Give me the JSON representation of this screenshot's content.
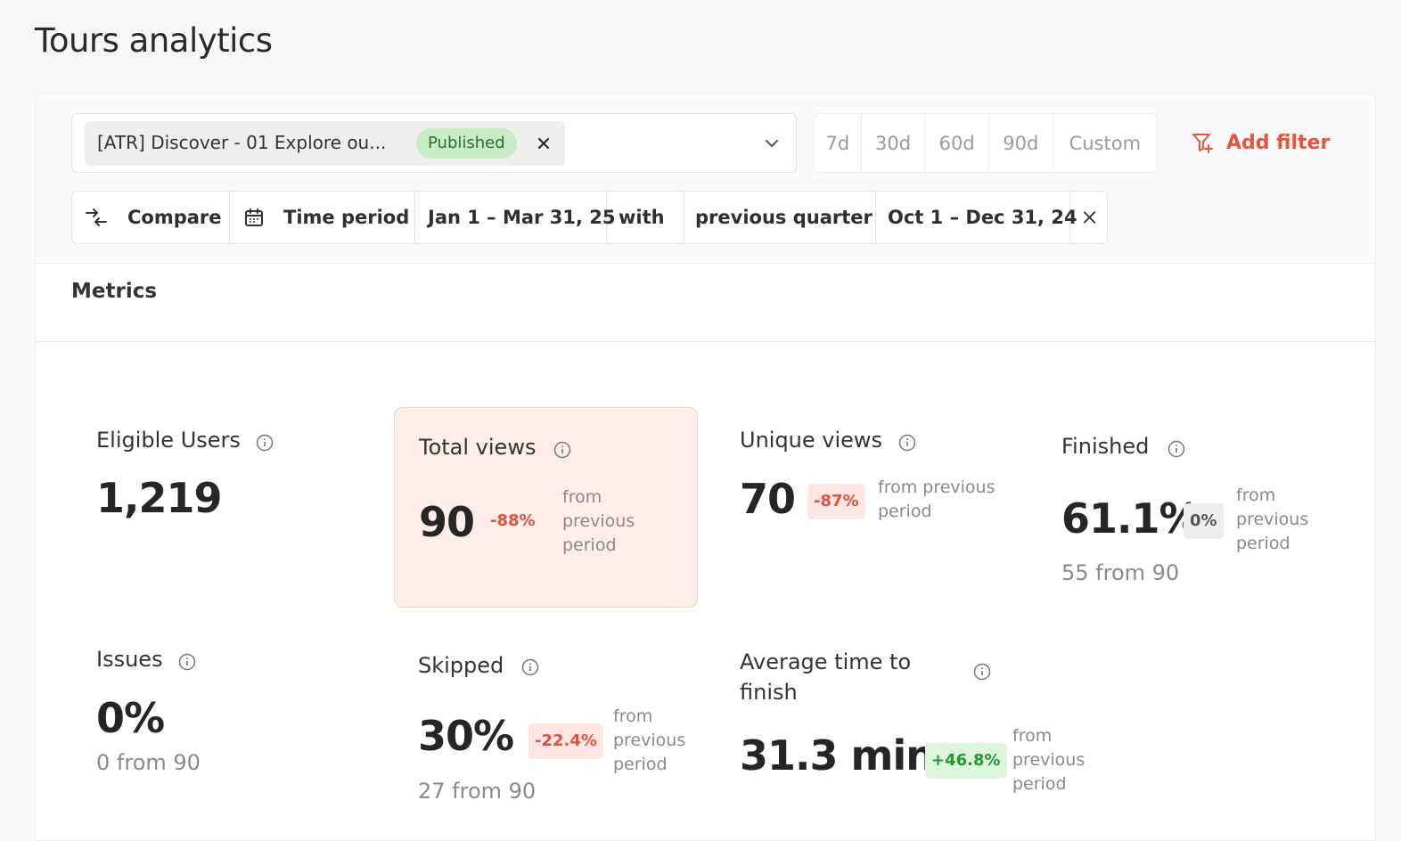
{
  "page": {
    "title": "Tours analytics"
  },
  "tour_filter": {
    "selected_label": "[ATR] Discover - 01 Explore ou...",
    "status": "Published",
    "remove_icon": "close-icon",
    "caret_icon": "chevron-down-icon"
  },
  "quick_ranges": [
    "7d",
    "30d",
    "60d",
    "90d",
    "Custom"
  ],
  "add_filter": {
    "label": "Add filter",
    "icon": "filter-plus-icon",
    "color": "#e8553a"
  },
  "compare": {
    "compare_label": "Compare",
    "time_period_label": "Time period",
    "period": "Jan 1 – Mar 31, 25",
    "with_label": "with",
    "comparison_type": "previous quarter",
    "comparison_period": "Oct 1 – Dec 31, 24"
  },
  "metrics": {
    "title": "Metrics",
    "eligible_users": {
      "title": "Eligible Users",
      "value": "1,219"
    },
    "total_views": {
      "title": "Total views",
      "value": "90",
      "delta": "-88%",
      "compare_text": "from previous period"
    },
    "unique_views": {
      "title": "Unique views",
      "value": "70",
      "delta": "-87%",
      "compare_text": "from previous period"
    },
    "finished": {
      "title": "Finished",
      "value": "61.1%",
      "delta": "0%",
      "compare_text": "from previous period",
      "sub": "55 from 90"
    },
    "issues": {
      "title": "Issues",
      "value": "0%",
      "sub": "0 from 90"
    },
    "skipped": {
      "title": "Skipped",
      "value": "30%",
      "delta": "-22.4%",
      "compare_text": "from previous period",
      "sub": "27 from 90"
    },
    "avg_time": {
      "title": "Average time to finish",
      "value": "31.3 min",
      "delta": "+46.8%",
      "compare_text": "from previous period"
    }
  },
  "colors": {
    "negative": "#e0523f",
    "positive": "#1f9a2f",
    "highlight_bg": "#fdefe7",
    "published_bg": "#c8ecc6"
  }
}
